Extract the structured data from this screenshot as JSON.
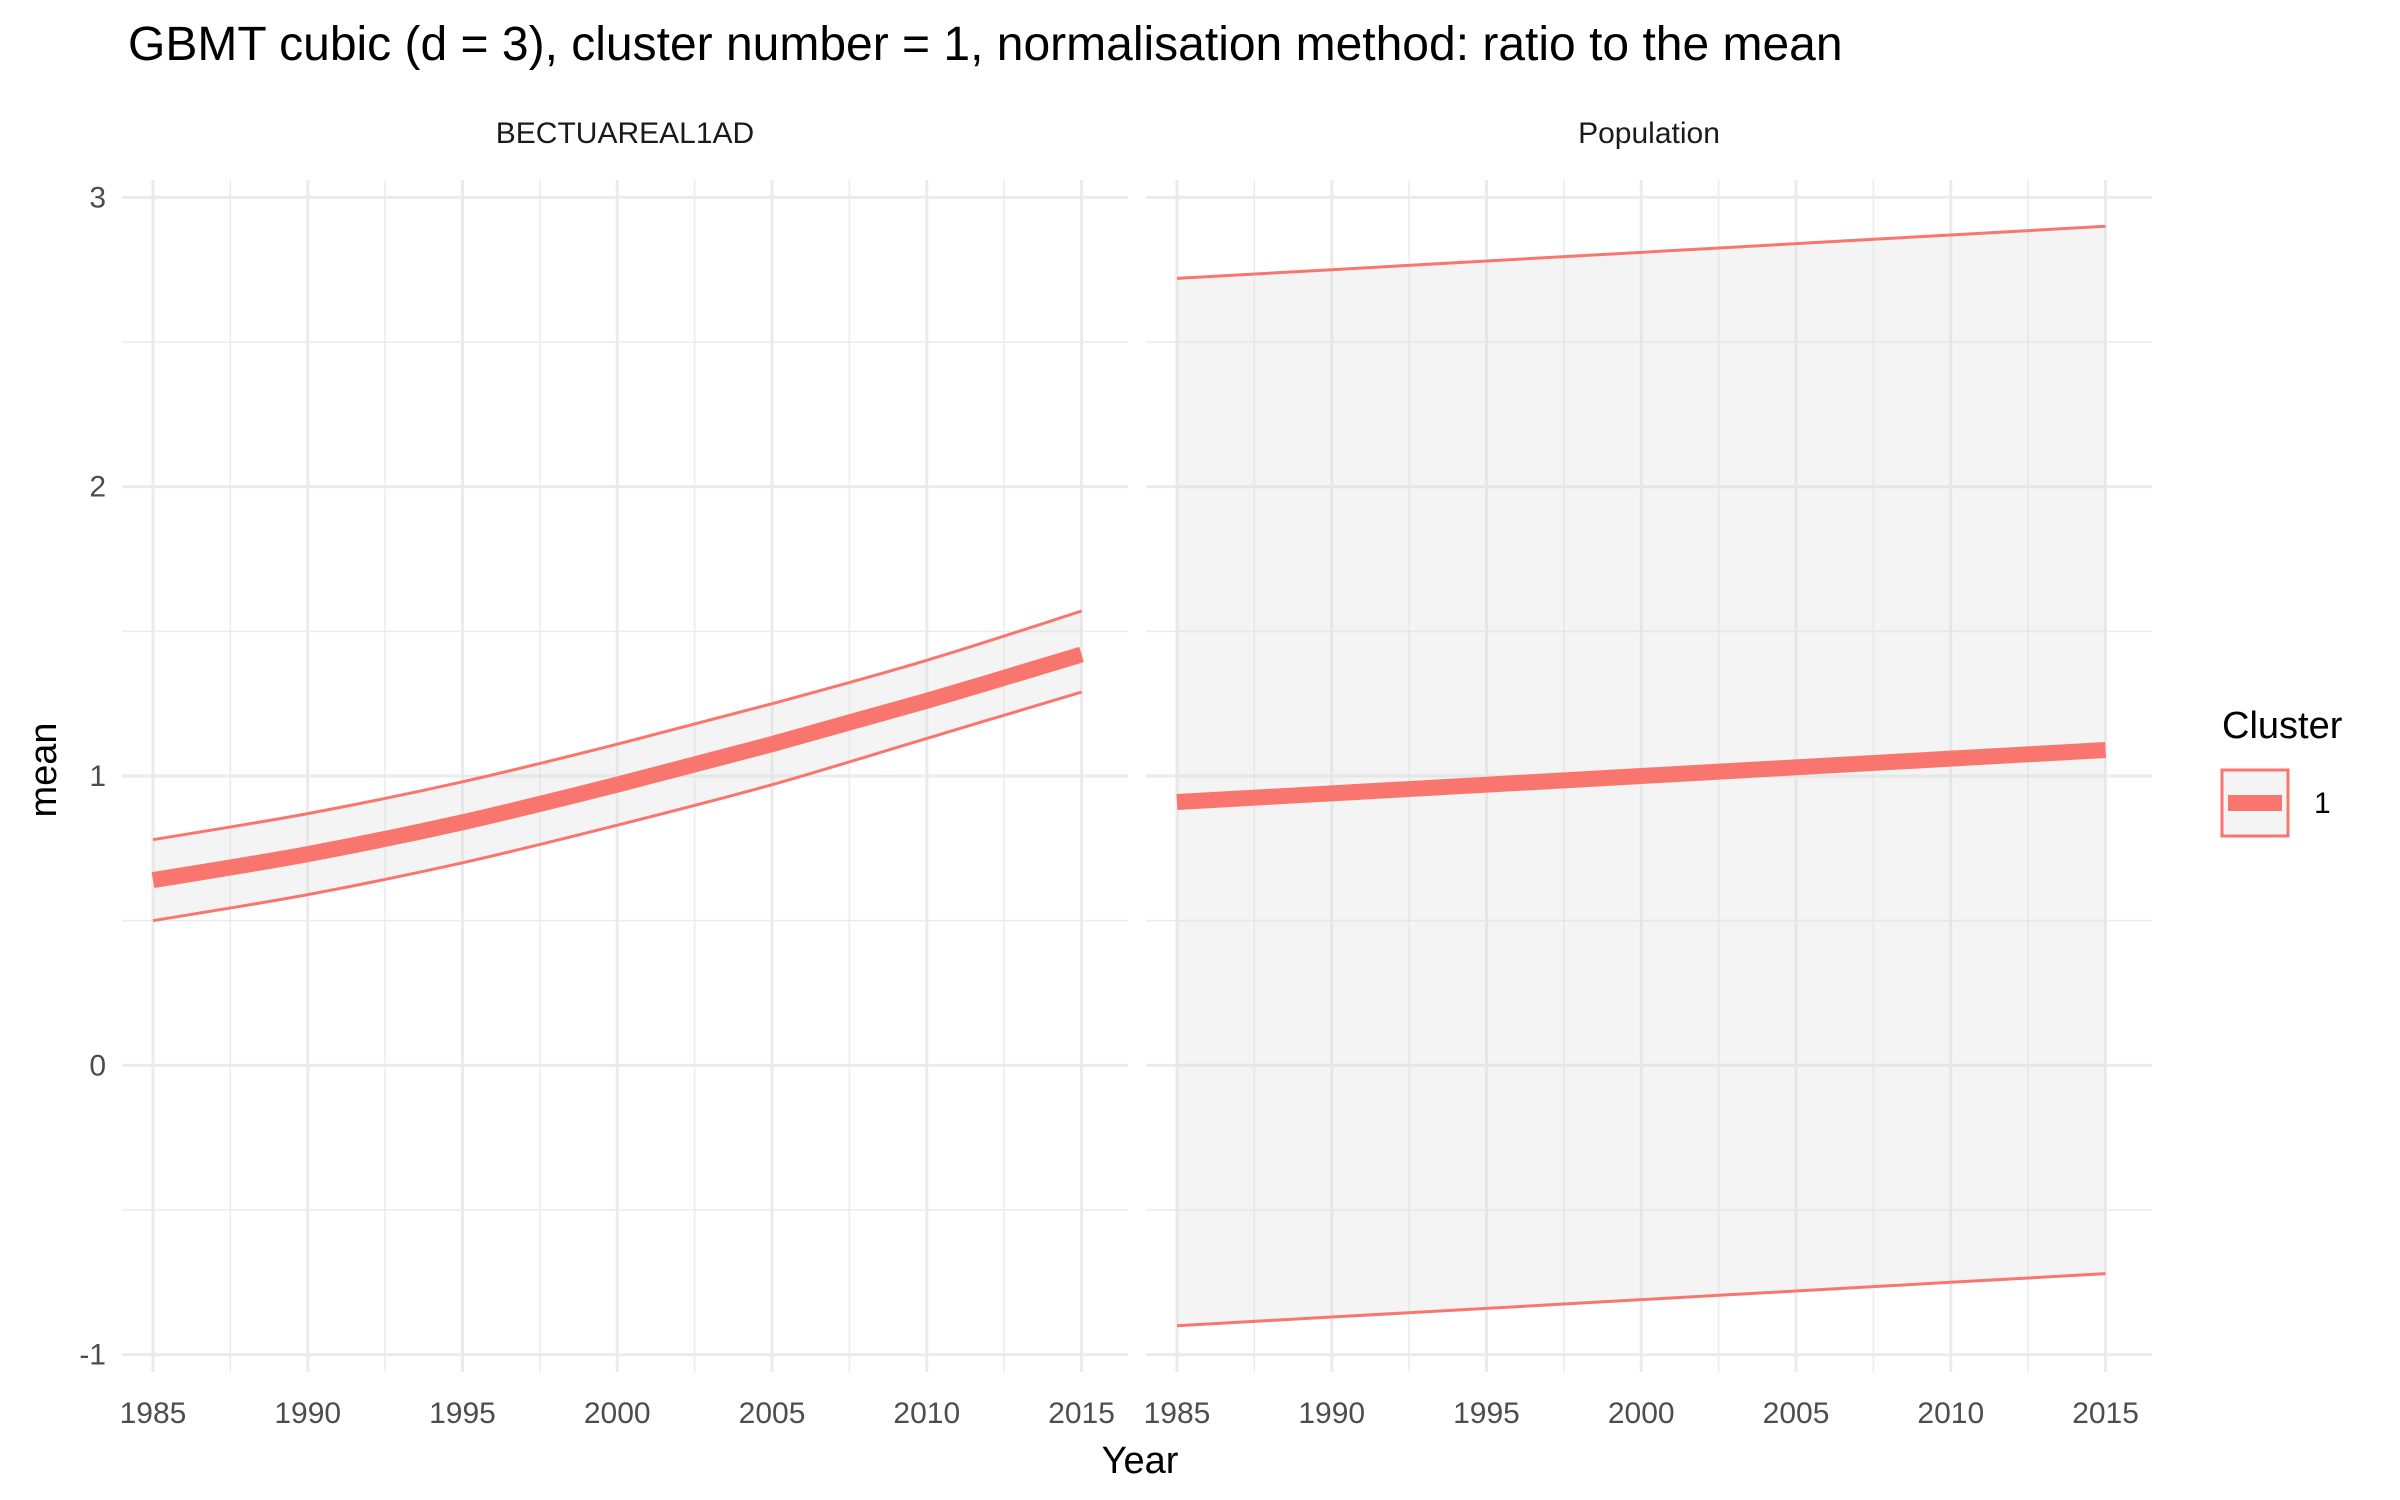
{
  "chart_data": {
    "type": "line",
    "title": "GBMT cubic (d = 3), cluster number = 1, normalisation method: ratio to the mean",
    "xlabel": "Year",
    "ylabel": "mean",
    "xlim": [
      1984,
      2016.5
    ],
    "ylim": [
      -1.06,
      3.06
    ],
    "x_ticks": [
      1985,
      1990,
      1995,
      2000,
      2005,
      2010,
      2015
    ],
    "y_ticks": [
      -1,
      0,
      1,
      2,
      3
    ],
    "y_tick_labels": [
      "-1",
      "0",
      "1",
      "2",
      "3"
    ],
    "x_tick_labels": [
      "1985",
      "1990",
      "1995",
      "2000",
      "2005",
      "2010",
      "2015"
    ],
    "legend": {
      "title": "Cluster",
      "placement": "right",
      "entries": [
        {
          "label": "1",
          "color": "#F8766D"
        }
      ]
    },
    "series_color": "#F8766D",
    "panels": [
      {
        "strip": "BECTUAREAL1AD",
        "series": [
          {
            "name": "1",
            "x": [
              1985,
              1990,
              1995,
              2000,
              2005,
              2010,
              2015
            ],
            "mean": [
              0.64,
              0.73,
              0.84,
              0.97,
              1.11,
              1.26,
              1.42
            ],
            "lower": [
              0.5,
              0.59,
              0.7,
              0.83,
              0.97,
              1.13,
              1.29
            ],
            "upper": [
              0.78,
              0.87,
              0.98,
              1.11,
              1.25,
              1.4,
              1.57
            ]
          }
        ]
      },
      {
        "strip": "Population",
        "series": [
          {
            "name": "1",
            "x": [
              1985,
              1990,
              1995,
              2000,
              2005,
              2010,
              2015
            ],
            "mean": [
              0.91,
              0.94,
              0.97,
              1.0,
              1.03,
              1.06,
              1.09
            ],
            "lower": [
              -0.9,
              -0.87,
              -0.84,
              -0.81,
              -0.78,
              -0.75,
              -0.72
            ],
            "upper": [
              2.72,
              2.75,
              2.78,
              2.81,
              2.84,
              2.87,
              2.9
            ]
          }
        ]
      }
    ]
  }
}
